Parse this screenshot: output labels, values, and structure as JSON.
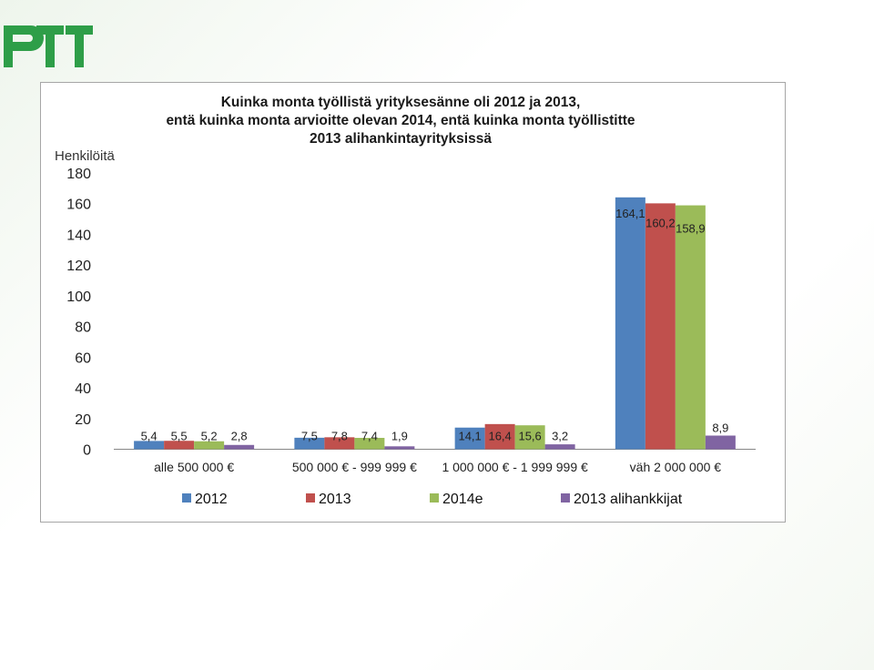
{
  "logo": {
    "text": "PTT",
    "color": "#2e9e48"
  },
  "chart_data": {
    "type": "bar",
    "title_lines": [
      "Kuinka monta työllistä yrityksesänne oli 2012 ja 2013,",
      "entä kuinka monta arvioitte olevan 2014, entä kuinka monta työllistitte",
      "2013 alihankintayrityksissä"
    ],
    "ylabel": "Henkilöitä",
    "xlabel": "",
    "ylim": [
      0,
      180
    ],
    "yticks": [
      0,
      20,
      40,
      60,
      80,
      100,
      120,
      140,
      160,
      180
    ],
    "categories": [
      "alle 500 000 €",
      "500 000 € - 999 999 €",
      "1 000 000 € - 1 999 999 €",
      "väh 2 000 000 €"
    ],
    "series": [
      {
        "name": "2012",
        "color": "#4f81bd",
        "values": [
          5.4,
          7.5,
          14.1,
          164.1
        ],
        "labels": [
          "5,4",
          "7,5",
          "14,1",
          "164,1"
        ]
      },
      {
        "name": "2013",
        "color": "#c0504d",
        "values": [
          5.5,
          7.8,
          16.4,
          160.2
        ],
        "labels": [
          "5,5",
          "7,8",
          "16,4",
          "160,2"
        ]
      },
      {
        "name": "2014e",
        "color": "#9bbb59",
        "values": [
          5.2,
          7.4,
          15.6,
          158.9
        ],
        "labels": [
          "5,2",
          "7,4",
          "15,6",
          "158,9"
        ]
      },
      {
        "name": "2013 alihankkijat",
        "color": "#8064a2",
        "values": [
          2.8,
          1.9,
          3.2,
          8.9
        ],
        "labels": [
          "2,8",
          "1,9",
          "3,2",
          "8,9"
        ]
      }
    ],
    "legend_position": "bottom",
    "grid": false
  }
}
